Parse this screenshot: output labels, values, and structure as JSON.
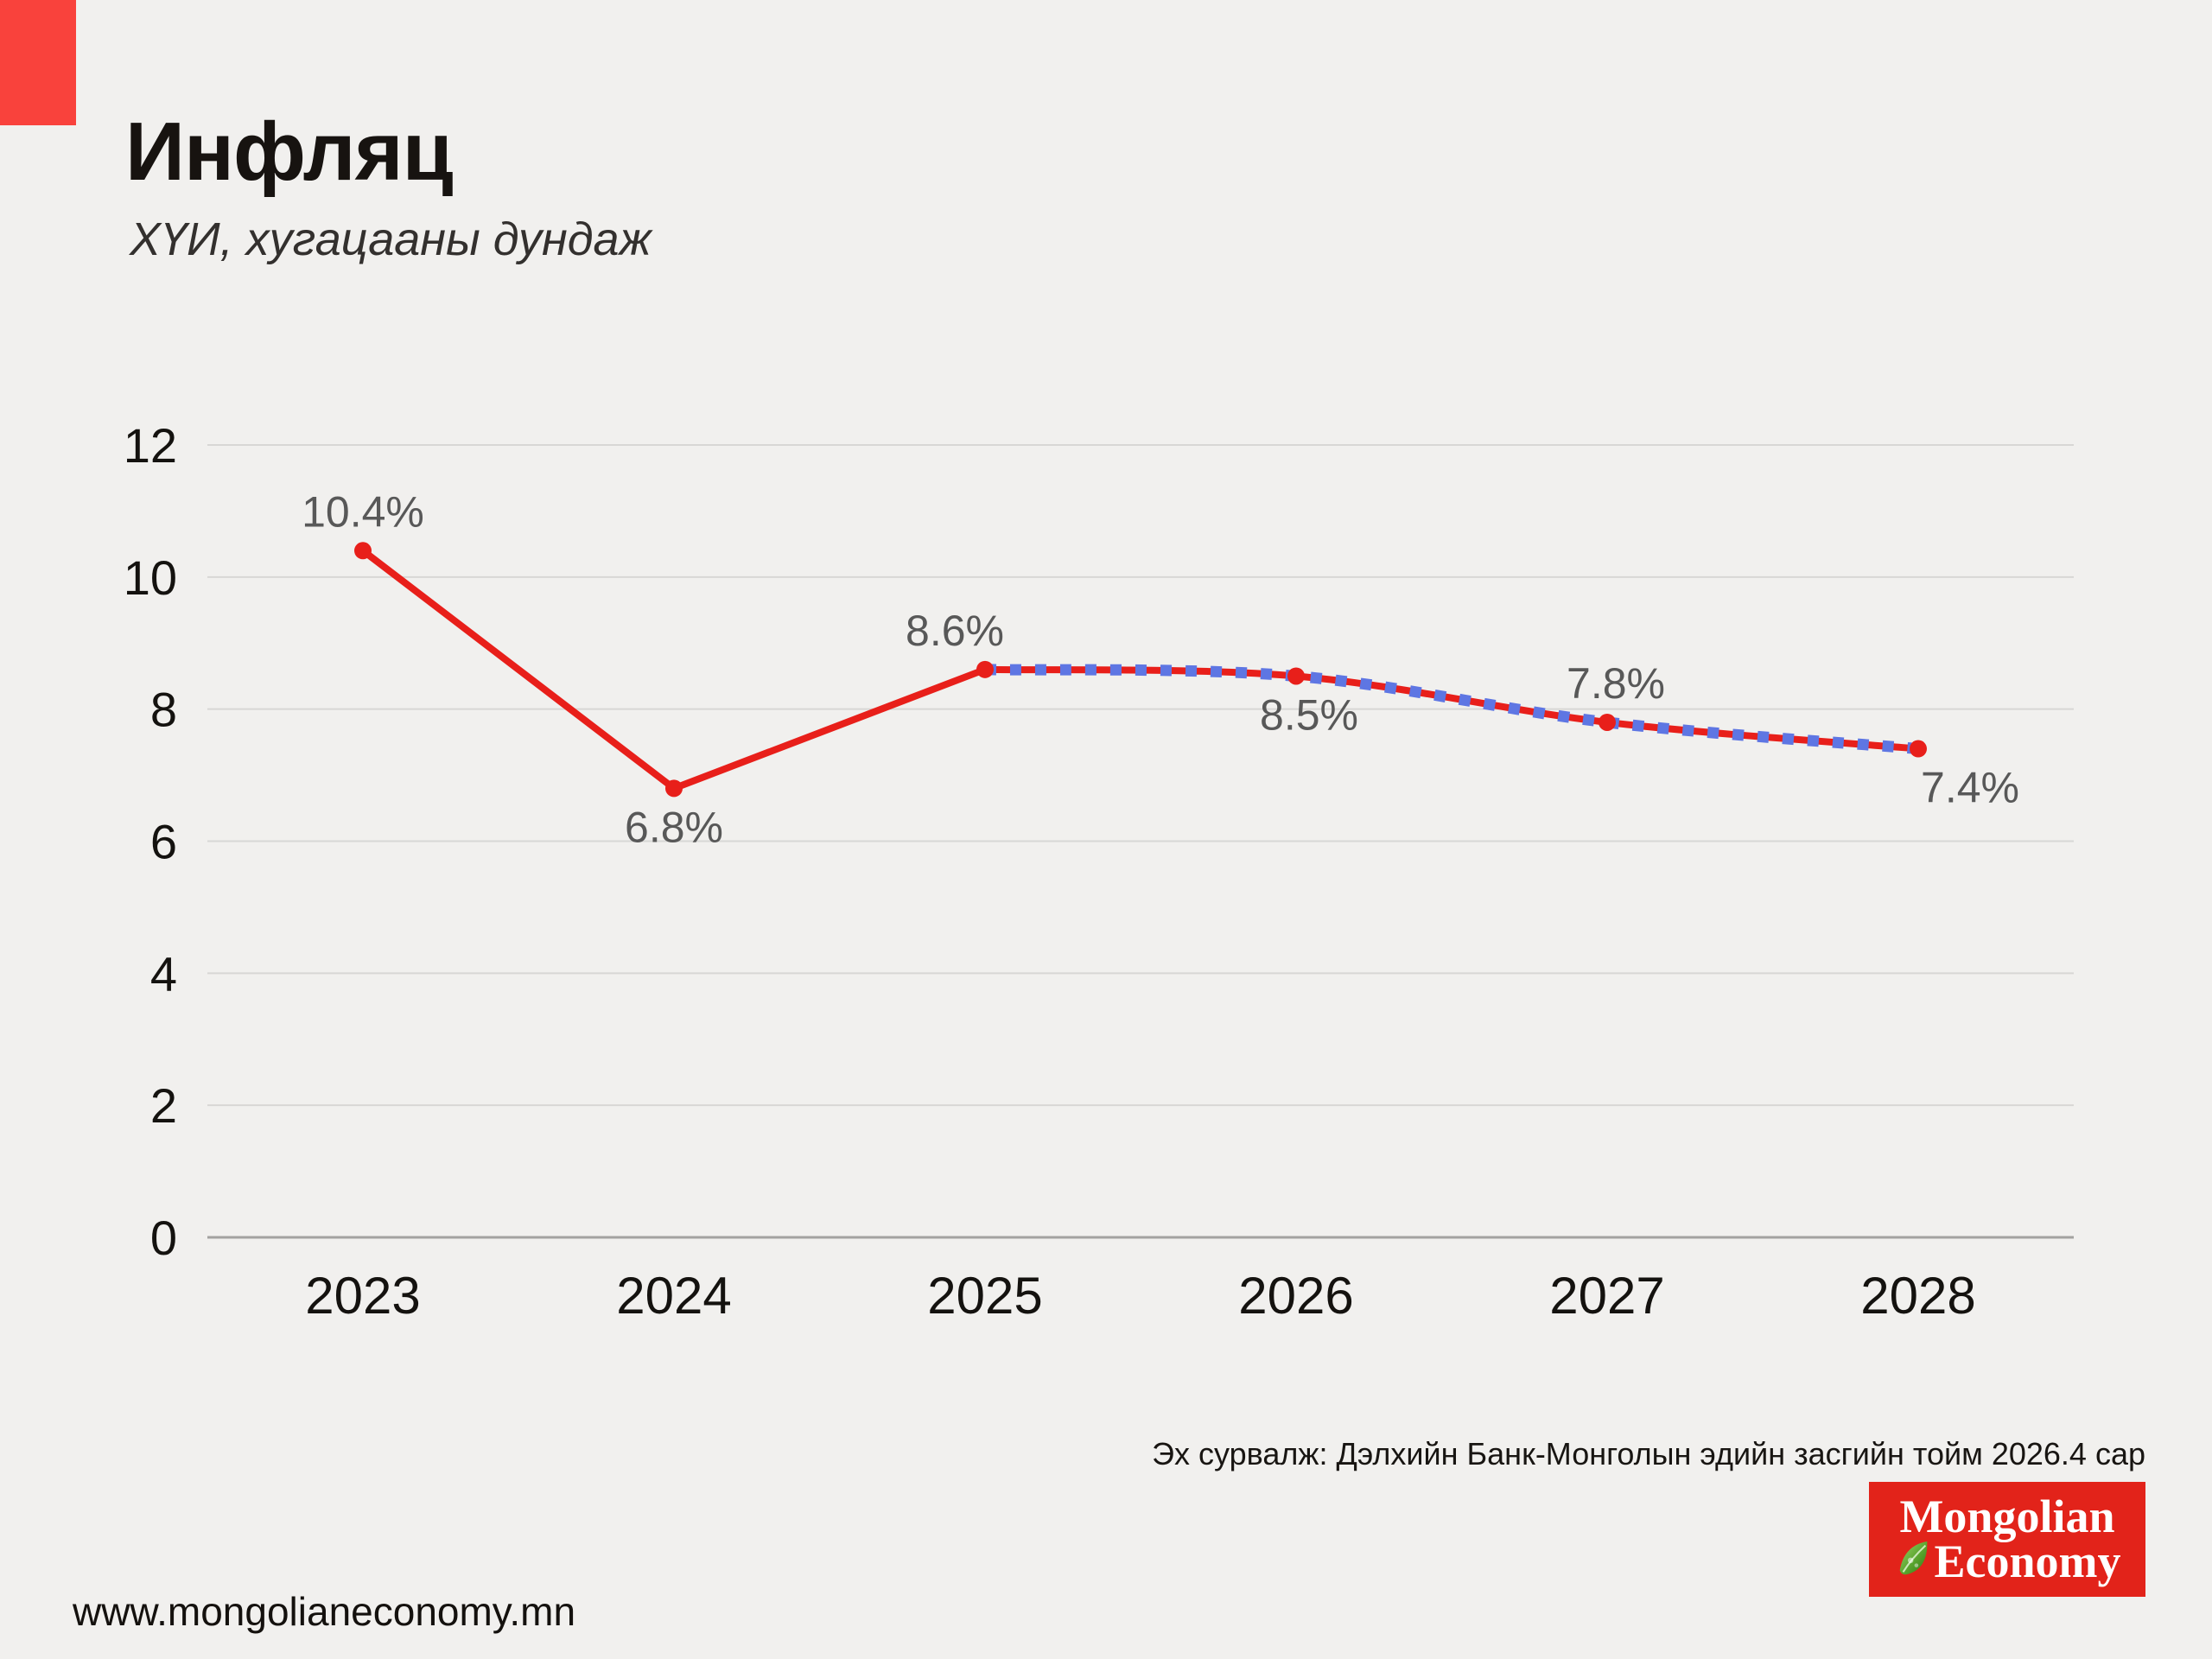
{
  "header": {
    "title": "Инфляц",
    "subtitle": "ХҮИ, хугацааны дундаж"
  },
  "footer": {
    "source": "Эх сурвалж: Дэлхийн Банк-Монголын эдийн засгийн тойм 2026.4 сар",
    "website": "www.mongolianeconomy.mn",
    "logo": {
      "line1": "Mongolian",
      "line2": "Economy",
      "icon": "leaf-icon"
    }
  },
  "colors": {
    "background": "#f1f0ee",
    "accent_red": "#f9423c",
    "line_red": "#e81f1a",
    "forecast_blue": "#5e76e3",
    "logo_red": "#e2231a",
    "data_label_gray": "#585858",
    "gridline": "#d8d7d5",
    "axis_line": "#a3a2a0",
    "text_dark": "#171310"
  },
  "chart_data": {
    "type": "line",
    "title": "Инфляц",
    "subtitle": "ХҮИ, хугацааны дундаж",
    "categories": [
      "2023",
      "2024",
      "2025",
      "2026",
      "2027",
      "2028"
    ],
    "values": [
      10.4,
      6.8,
      8.6,
      8.5,
      7.8,
      7.4
    ],
    "data_labels": [
      "10.4%",
      "6.8%",
      "8.6%",
      "8.5%",
      "7.8%",
      "7.4%"
    ],
    "label_positions": [
      "above",
      "below",
      "above",
      "below",
      "above",
      "below"
    ],
    "label_dx": [
      0,
      0,
      -35,
      15,
      10,
      60
    ],
    "y_ticks": [
      0,
      2,
      4,
      6,
      8,
      10,
      12
    ],
    "ylim": [
      0,
      12
    ],
    "xlabel": "",
    "ylabel": "",
    "grid": true,
    "legend": false,
    "forecast_from_index": 2,
    "series_style": {
      "actual": "solid red line with round markers (2023–2025)",
      "forecast": "red line overlaid with blue dashes (2025–2028)"
    }
  }
}
